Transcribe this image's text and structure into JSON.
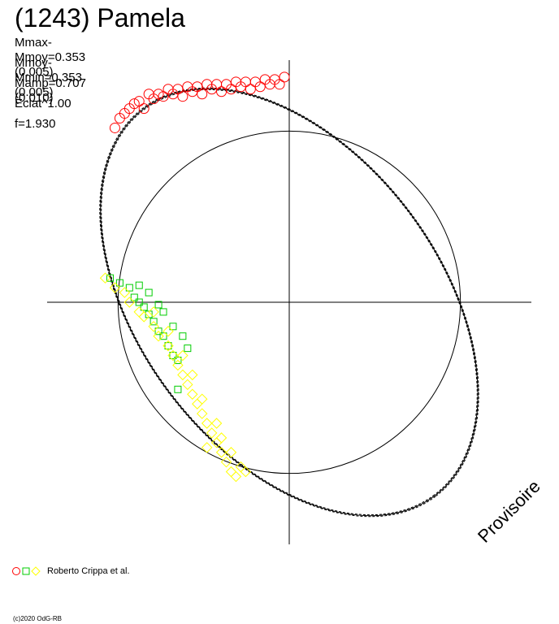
{
  "title": "(1243) Pamela",
  "stats": [
    "Mmax-Mmoy=0.353 (0.005)",
    "Mmoy-Mmin=0.353 (0.005)",
    "Mamp=0.707 (0.010)",
    "Eclat^1.00",
    "f=1.930"
  ],
  "watermark": "Provisoire",
  "legend": {
    "markers": [
      {
        "shape": "circle",
        "color": "#ff0000"
      },
      {
        "shape": "square",
        "color": "#00cc00"
      },
      {
        "shape": "diamond",
        "color": "#ffff00"
      }
    ],
    "label": "Roberto Crippa et al."
  },
  "copyright": "(c)2020 OdG-RB",
  "chart_data": {
    "type": "scatter",
    "coordinate_system": "polar phase plot (normalized)",
    "xlim": [
      -1.0,
      1.0
    ],
    "ylim": [
      -1.0,
      1.0
    ],
    "reference_circle_radius": 0.707,
    "fit_ellipse": {
      "center": [
        0.0,
        0.0
      ],
      "semi_major": 1.0,
      "semi_minor": 0.62,
      "angle_deg": -53
    },
    "series": [
      {
        "color": "#ff0000",
        "marker": "circle",
        "points": [
          [
            -0.72,
            0.72
          ],
          [
            -0.7,
            0.76
          ],
          [
            -0.66,
            0.8
          ],
          [
            -0.62,
            0.83
          ],
          [
            -0.58,
            0.86
          ],
          [
            -0.54,
            0.86
          ],
          [
            -0.5,
            0.88
          ],
          [
            -0.46,
            0.88
          ],
          [
            -0.42,
            0.89
          ],
          [
            -0.38,
            0.89
          ],
          [
            -0.34,
            0.9
          ],
          [
            -0.3,
            0.9
          ],
          [
            -0.26,
            0.9
          ],
          [
            -0.22,
            0.91
          ],
          [
            -0.18,
            0.91
          ],
          [
            -0.14,
            0.91
          ],
          [
            -0.1,
            0.92
          ],
          [
            -0.06,
            0.92
          ],
          [
            -0.02,
            0.93
          ],
          [
            -0.68,
            0.78
          ],
          [
            -0.64,
            0.82
          ],
          [
            -0.6,
            0.8
          ],
          [
            -0.56,
            0.84
          ],
          [
            -0.52,
            0.85
          ],
          [
            -0.48,
            0.86
          ],
          [
            -0.44,
            0.85
          ],
          [
            -0.4,
            0.87
          ],
          [
            -0.36,
            0.86
          ],
          [
            -0.32,
            0.88
          ],
          [
            -0.28,
            0.87
          ],
          [
            -0.24,
            0.88
          ],
          [
            -0.2,
            0.89
          ],
          [
            -0.16,
            0.88
          ],
          [
            -0.12,
            0.89
          ],
          [
            -0.08,
            0.9
          ],
          [
            -0.04,
            0.9
          ]
        ]
      },
      {
        "color": "#00cc00",
        "marker": "square",
        "points": [
          [
            -0.74,
            0.1
          ],
          [
            -0.7,
            0.08
          ],
          [
            -0.66,
            0.06
          ],
          [
            -0.64,
            0.02
          ],
          [
            -0.62,
            0.0
          ],
          [
            -0.6,
            -0.02
          ],
          [
            -0.58,
            -0.05
          ],
          [
            -0.56,
            -0.08
          ],
          [
            -0.54,
            -0.12
          ],
          [
            -0.52,
            -0.14
          ],
          [
            -0.5,
            -0.18
          ],
          [
            -0.48,
            -0.22
          ],
          [
            -0.46,
            -0.24
          ],
          [
            -0.62,
            0.07
          ],
          [
            -0.58,
            0.04
          ],
          [
            -0.54,
            -0.01
          ],
          [
            -0.52,
            -0.04
          ],
          [
            -0.48,
            -0.1
          ],
          [
            -0.44,
            -0.14
          ],
          [
            -0.42,
            -0.19
          ],
          [
            -0.46,
            -0.36
          ]
        ]
      },
      {
        "color": "#ffff00",
        "marker": "diamond",
        "points": [
          [
            -0.76,
            0.1
          ],
          [
            -0.72,
            0.06
          ],
          [
            -0.68,
            0.04
          ],
          [
            -0.66,
            0.0
          ],
          [
            -0.62,
            -0.04
          ],
          [
            -0.6,
            -0.06
          ],
          [
            -0.56,
            -0.1
          ],
          [
            -0.54,
            -0.14
          ],
          [
            -0.5,
            -0.18
          ],
          [
            -0.48,
            -0.22
          ],
          [
            -0.46,
            -0.26
          ],
          [
            -0.44,
            -0.3
          ],
          [
            -0.42,
            -0.34
          ],
          [
            -0.4,
            -0.38
          ],
          [
            -0.38,
            -0.42
          ],
          [
            -0.36,
            -0.46
          ],
          [
            -0.34,
            -0.5
          ],
          [
            -0.32,
            -0.54
          ],
          [
            -0.3,
            -0.58
          ],
          [
            -0.28,
            -0.62
          ],
          [
            -0.26,
            -0.66
          ],
          [
            -0.24,
            -0.7
          ],
          [
            -0.22,
            -0.72
          ],
          [
            -0.2,
            -0.68
          ],
          [
            -0.18,
            -0.7
          ],
          [
            -0.3,
            -0.5
          ],
          [
            -0.36,
            -0.4
          ],
          [
            -0.4,
            -0.3
          ],
          [
            -0.44,
            -0.22
          ],
          [
            -0.5,
            -0.12
          ],
          [
            -0.56,
            -0.04
          ],
          [
            -0.34,
            -0.6
          ],
          [
            -0.28,
            -0.56
          ],
          [
            -0.24,
            -0.62
          ]
        ]
      }
    ]
  }
}
